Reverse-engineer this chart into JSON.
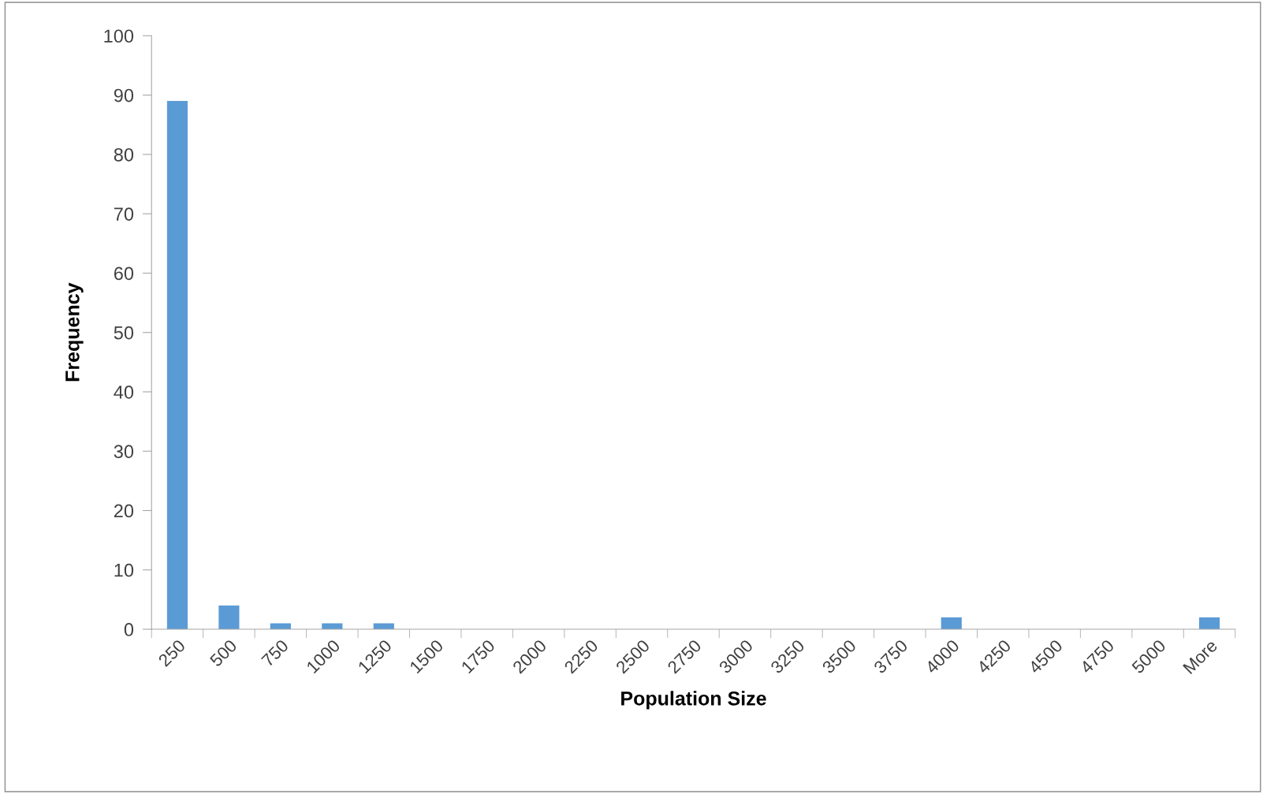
{
  "chart_data": {
    "type": "bar",
    "xlabel": "Population Size",
    "ylabel": "Frequency",
    "categories": [
      "250",
      "500",
      "750",
      "1000",
      "1250",
      "1500",
      "1750",
      "2000",
      "2250",
      "2500",
      "2750",
      "3000",
      "3250",
      "3500",
      "3750",
      "4000",
      "4250",
      "4500",
      "4750",
      "5000",
      "More"
    ],
    "values": [
      89,
      4,
      1,
      1,
      1,
      0,
      0,
      0,
      0,
      0,
      0,
      0,
      0,
      0,
      0,
      2,
      0,
      0,
      0,
      0,
      2
    ],
    "color": "#5b9bd5",
    "ylim": [
      0,
      100
    ],
    "yticks": [
      0,
      10,
      20,
      30,
      40,
      50,
      60,
      70,
      80,
      90,
      100
    ],
    "grid": false,
    "legend": false
  }
}
